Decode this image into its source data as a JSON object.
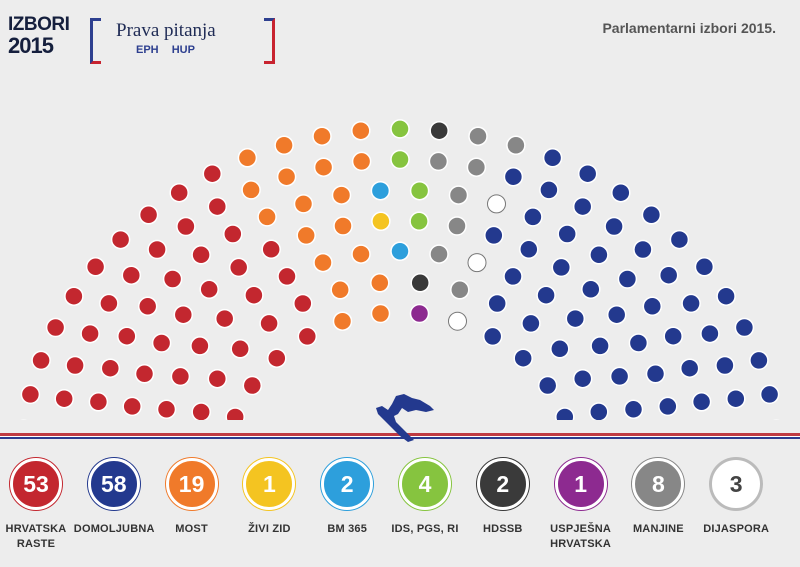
{
  "header": {
    "logo_line1": "IZBORI",
    "logo_line2": "2015",
    "brand_title": "Prava pitanja",
    "partner1": "EPH",
    "partner2": "HUP",
    "title": "Parlamentarni izbori 2015."
  },
  "chart_data": {
    "type": "parliament",
    "title": "Parlamentarni izbori 2015.",
    "total_seats": 151,
    "parties": [
      {
        "name": "HRVATSKA RASTE",
        "seats": 53,
        "color": "#c3272f"
      },
      {
        "name": "DOMOLJUBNA",
        "seats": 58,
        "color": "#23398e"
      },
      {
        "name": "MOST",
        "seats": 19,
        "color": "#f07a2a"
      },
      {
        "name": "ŽIVI ZID",
        "seats": 1,
        "color": "#f4c421"
      },
      {
        "name": "BM 365",
        "seats": 2,
        "color": "#2d9fdc"
      },
      {
        "name": "IDS, PGS, RI",
        "seats": 4,
        "color": "#86c43f"
      },
      {
        "name": "HDSSB",
        "seats": 2,
        "color": "#3a3a3a"
      },
      {
        "name": "USPJEŠNA HRVATSKA",
        "seats": 1,
        "color": "#8d2a90"
      },
      {
        "name": "MANJINE",
        "seats": 8,
        "color": "#878787"
      },
      {
        "name": "DIJASPORA",
        "seats": 3,
        "color": "#ffffff"
      }
    ]
  }
}
